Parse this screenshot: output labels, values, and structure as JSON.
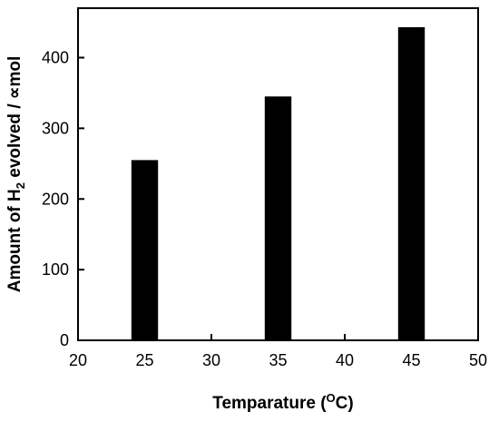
{
  "chart_data": {
    "type": "bar",
    "x": [
      25,
      35,
      45
    ],
    "values": [
      255,
      345,
      443
    ],
    "xlim": [
      20,
      50
    ],
    "ylim": [
      0,
      470
    ],
    "xticks": [
      20,
      25,
      30,
      35,
      40,
      45,
      50
    ],
    "yticks": [
      0,
      100,
      200,
      300,
      400
    ],
    "bar_width": 2,
    "xlabel": {
      "main": "Temparature (",
      "sup": "O",
      "unit": "C)"
    },
    "ylabel": {
      "pre": "Amount of H",
      "sub": "2",
      "post": " evolved / ∝mol"
    },
    "title": "",
    "bar_color": "#000000",
    "grid": false,
    "legend": false
  }
}
